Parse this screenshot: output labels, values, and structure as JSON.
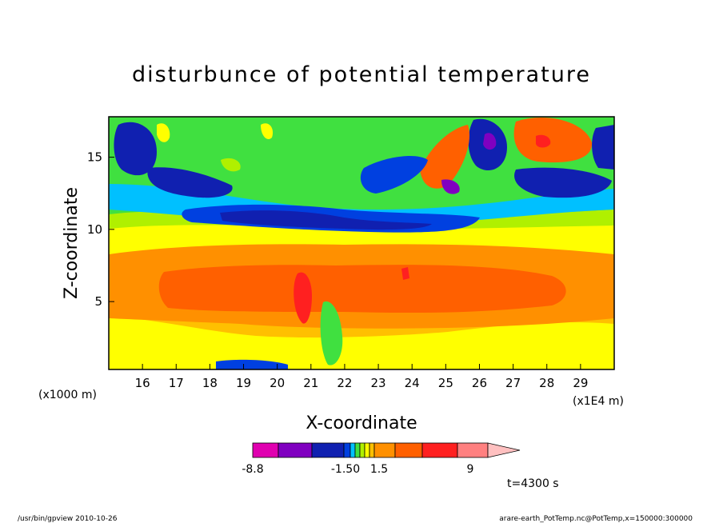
{
  "chart_data": {
    "type": "heatmap",
    "title": "disturbunce of potential temperature",
    "xlabel": "X-coordinate",
    "ylabel": "Z-coordinate",
    "x_unit": "(x1E4 m)",
    "y_unit": "(x1000 m)",
    "x_ticks": [
      "16",
      "17",
      "18",
      "19",
      "20",
      "21",
      "22",
      "23",
      "24",
      "25",
      "26",
      "27",
      "28",
      "29"
    ],
    "y_ticks": [
      "5",
      "10",
      "15"
    ],
    "xlim": [
      15.0,
      30.0
    ],
    "ylim": [
      0.3,
      17.8
    ],
    "colorbar": {
      "labels": [
        "-8.8",
        "-1.50",
        "1.5",
        "9"
      ],
      "colors": [
        "#e000b0",
        "#8000c0",
        "#1020b0",
        "#0040e0",
        "#00c0ff",
        "#40e040",
        "#b0f000",
        "#ffff00",
        "#ffc000",
        "#ff9000",
        "#ff6000",
        "#ff2020",
        "#ff8080",
        "#ffc0c0"
      ]
    },
    "time_label": "t=4300 s",
    "colors": {
      "magenta": "#e000b0",
      "purple": "#8000c0",
      "navy": "#1020b0",
      "blue": "#0040e0",
      "cyan": "#00c0ff",
      "green": "#40e040",
      "yellowgreen": "#b0f000",
      "yellow": "#ffff00",
      "lightorange": "#ffc000",
      "orange": "#ff9000",
      "deeporange": "#ff6000",
      "red": "#ff2020"
    }
  },
  "footer": {
    "left": "/usr/bin/gpview   2010-10-26",
    "right": "arare-earth_PotTemp.nc@PotTemp,x=150000:300000"
  }
}
